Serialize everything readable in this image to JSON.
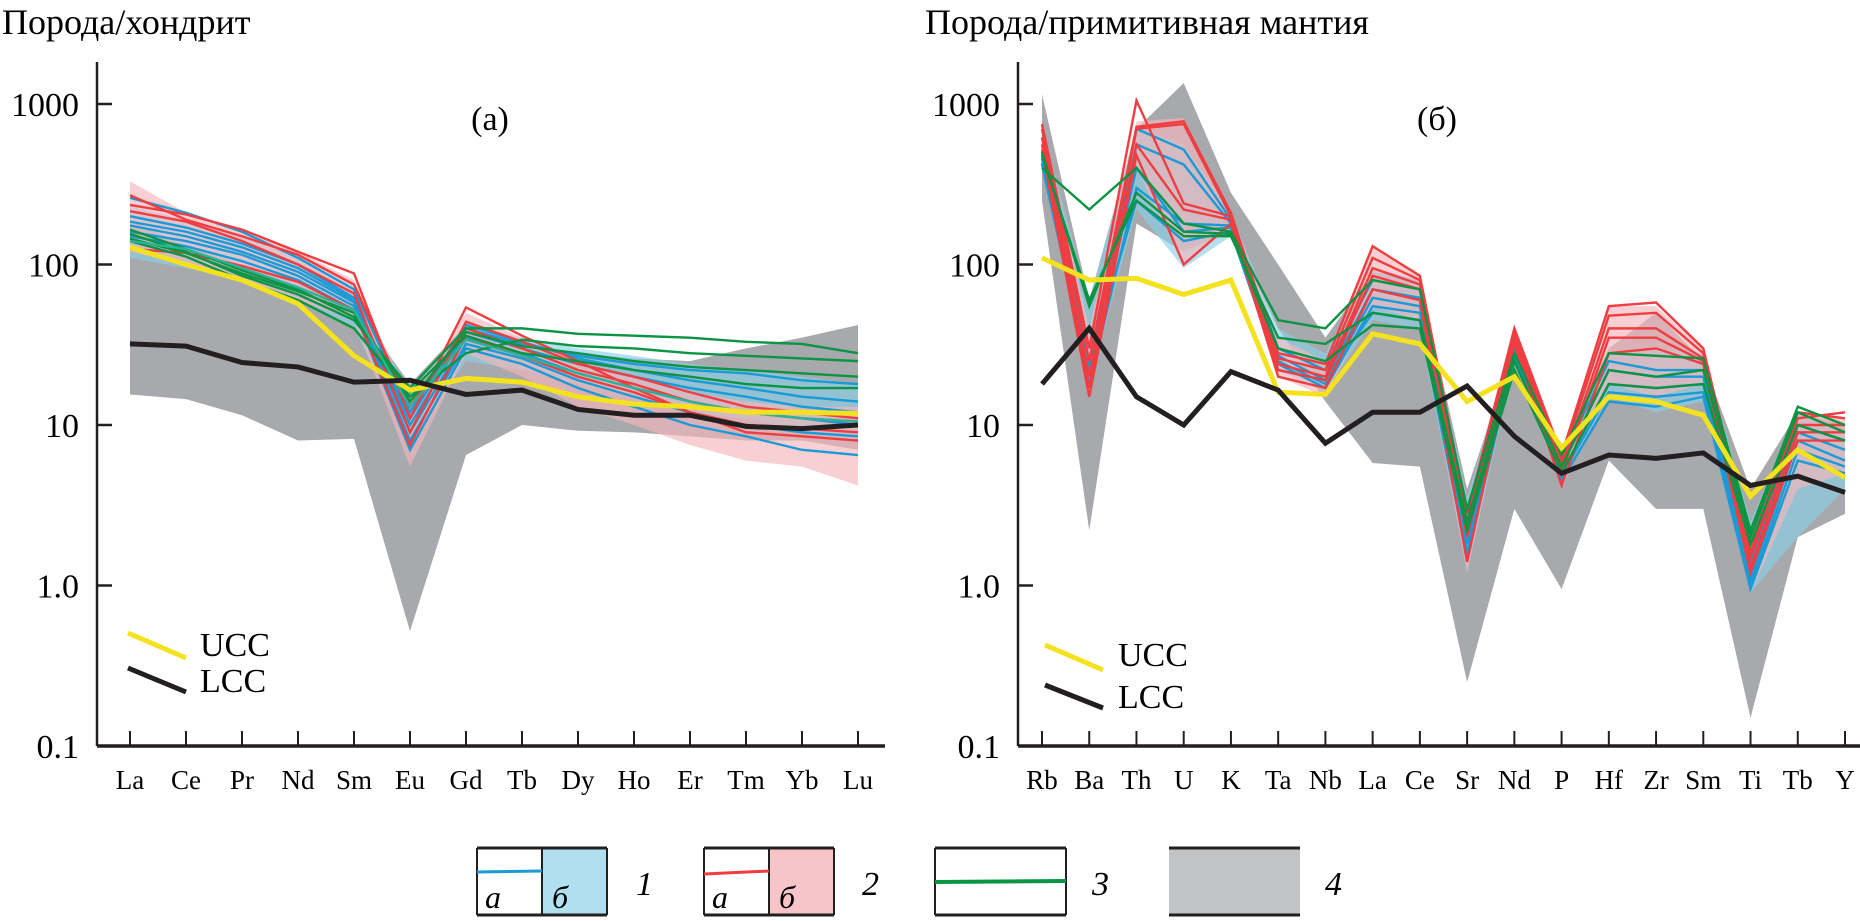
{
  "chart_data": [
    {
      "type": "line",
      "panel_label": "(a)",
      "ylabel": "Порода/хондрит",
      "yscale": "log",
      "ylim": [
        0.1,
        1500
      ],
      "yticks": [
        1000,
        100,
        10,
        1.0,
        0.1
      ],
      "ytick_labels": [
        "1000",
        "100",
        "10",
        "1.0",
        "0.1"
      ],
      "categories": [
        "La",
        "Ce",
        "Pr",
        "Nd",
        "Sm",
        "Eu",
        "Gd",
        "Tb",
        "Dy",
        "Ho",
        "Er",
        "Tm",
        "Yb",
        "Lu"
      ],
      "inset_legend": [
        {
          "label": "UCC",
          "color": "#f4e21e"
        },
        {
          "label": "LCC",
          "color": "#231f20"
        }
      ],
      "bands": [
        {
          "name": "field-4-gray",
          "color": "#a7a9ac",
          "upper": [
            190,
            130,
            100,
            75,
            55,
            18,
            42,
            30,
            28,
            26,
            25,
            30,
            35,
            42
          ],
          "lower": [
            15.5,
            14.5,
            11.5,
            8,
            8.2,
            0.52,
            6.5,
            10,
            9.2,
            9,
            8.5,
            8,
            8,
            7
          ]
        },
        {
          "name": "field-1b-blue",
          "color": "#8ccfe6",
          "upper": [
            230,
            190,
            150,
            110,
            70,
            16,
            42,
            35,
            30,
            27,
            24,
            22,
            20,
            18
          ],
          "lower": [
            110,
            95,
            80,
            60,
            40,
            8,
            25,
            22,
            18,
            15,
            12,
            11,
            9,
            8
          ]
        },
        {
          "name": "field-2b-pink",
          "color": "#f4b6bb",
          "upper": [
            330,
            210,
            160,
            120,
            80,
            14,
            50,
            35,
            25,
            20,
            16,
            14,
            13,
            13
          ],
          "lower": [
            120,
            100,
            80,
            60,
            45,
            5.5,
            28,
            20,
            13,
            10,
            7.5,
            6,
            5.5,
            4.2
          ]
        }
      ],
      "series": [
        {
          "name": "UCC",
          "color": "#f4e21e",
          "width": "thick",
          "values": [
            128,
            100,
            80,
            57,
            27,
            16.5,
            19.5,
            18.5,
            15,
            13.5,
            13,
            12,
            12,
            11.8
          ]
        },
        {
          "name": "LCC",
          "color": "#231f20",
          "width": "thick",
          "values": [
            32,
            31,
            24.5,
            23,
            18.5,
            19,
            15.5,
            16.5,
            12.5,
            11.5,
            11.5,
            9.8,
            9.5,
            10
          ]
        },
        {
          "name": "1a",
          "color": "#1a9ad6",
          "values": [
            260,
            210,
            160,
            110,
            70,
            12,
            42,
            33,
            26,
            22,
            19,
            17,
            15,
            14
          ]
        },
        {
          "name": "1a",
          "color": "#1a9ad6",
          "values": [
            200,
            170,
            135,
            100,
            62,
            10,
            38,
            30,
            24,
            20,
            17,
            15,
            13,
            12
          ]
        },
        {
          "name": "1a",
          "color": "#1a9ad6",
          "values": [
            175,
            150,
            120,
            90,
            58,
            9,
            35,
            28,
            21,
            17,
            14,
            12,
            11,
            10
          ]
        },
        {
          "name": "1a",
          "color": "#1a9ad6",
          "values": [
            160,
            140,
            115,
            85,
            55,
            8,
            32,
            26,
            19,
            15,
            12,
            10,
            9,
            8.5
          ]
        },
        {
          "name": "1a",
          "color": "#1a9ad6",
          "values": [
            150,
            130,
            105,
            80,
            52,
            7,
            30,
            24,
            17,
            13,
            10,
            8.5,
            7,
            6.5
          ]
        },
        {
          "name": "1a",
          "color": "#1a9ad6",
          "values": [
            185,
            160,
            128,
            95,
            60,
            11,
            40,
            32,
            27,
            24,
            22,
            21,
            19,
            18
          ]
        },
        {
          "name": "2a",
          "color": "#ef3e42",
          "values": [
            235,
            205,
            165,
            120,
            88,
            11,
            54,
            36,
            25,
            17,
            12,
            9,
            8.5,
            8
          ]
        },
        {
          "name": "2a",
          "color": "#ef3e42",
          "values": [
            215,
            185,
            140,
            100,
            66,
            9,
            44,
            33,
            24,
            20,
            16,
            13,
            12,
            11
          ]
        },
        {
          "name": "2a",
          "color": "#ef3e42",
          "values": [
            125,
            118,
            98,
            78,
            52,
            7.5,
            36,
            27,
            20,
            16,
            12,
            10,
            9.5,
            9
          ]
        },
        {
          "name": "2a",
          "color": "#ef3e42",
          "values": [
            270,
            190,
            150,
            115,
            75,
            13,
            40,
            30,
            22,
            18,
            14,
            12,
            11,
            10.5
          ]
        },
        {
          "name": "3",
          "color": "#0b9444",
          "values": [
            155,
            120,
            85,
            65,
            45,
            17,
            40,
            40,
            37,
            36,
            35,
            33,
            32,
            28
          ]
        },
        {
          "name": "3",
          "color": "#0b9444",
          "values": [
            140,
            112,
            80,
            60,
            40,
            15,
            28,
            34,
            31,
            30,
            28,
            27,
            26,
            25
          ]
        },
        {
          "name": "3",
          "color": "#0b9444",
          "values": [
            145,
            118,
            88,
            68,
            50,
            14,
            38,
            31,
            28,
            25,
            23,
            22,
            21,
            20
          ]
        },
        {
          "name": "3",
          "color": "#0b9444",
          "values": [
            165,
            125,
            92,
            70,
            47,
            16,
            36,
            28,
            25,
            22,
            20,
            18,
            17,
            17
          ]
        },
        {
          "name": "3",
          "color": "#2ab397",
          "values": [
            140,
            125,
            95,
            72,
            52,
            13,
            34,
            27,
            21,
            17,
            14,
            12,
            11,
            10.5
          ]
        }
      ]
    },
    {
      "type": "line",
      "panel_label": "(б)",
      "ylabel": "Порода/примитивная мантия",
      "yscale": "log",
      "ylim": [
        0.1,
        1500
      ],
      "yticks": [
        1000,
        100,
        10,
        1.0,
        0.1
      ],
      "ytick_labels": [
        "1000",
        "100",
        "10",
        "1.0",
        "0.1"
      ],
      "categories": [
        "Rb",
        "Ba",
        "Th",
        "U",
        "K",
        "Ta",
        "Nb",
        "La",
        "Ce",
        "Sr",
        "Nd",
        "P",
        "Hf",
        "Zr",
        "Sm",
        "Ti",
        "Tb",
        "Y"
      ],
      "inset_legend": [
        {
          "label": "UCC",
          "color": "#f4e21e"
        },
        {
          "label": "LCC",
          "color": "#231f20"
        }
      ],
      "bands": [
        {
          "name": "field-4-gray",
          "color": "#a7a9ac",
          "upper": [
            1150,
            60,
            700,
            1350,
            280,
            100,
            35,
            90,
            80,
            4,
            30,
            7,
            30,
            50,
            25,
            4,
            12,
            10
          ],
          "lower": [
            250,
            2.2,
            180,
            120,
            160,
            40,
            14,
            5.8,
            5.5,
            0.25,
            3,
            0.95,
            6,
            3,
            3,
            0.15,
            2,
            2.8
          ]
        },
        {
          "name": "field-1b-blue",
          "color": "#8ccfe6",
          "upper": [
            700,
            60,
            720,
            560,
            210,
            40,
            28,
            95,
            80,
            3.5,
            38,
            7,
            28,
            30,
            28,
            2.5,
            12,
            9
          ],
          "lower": [
            400,
            18,
            220,
            95,
            150,
            22,
            16,
            45,
            40,
            1.2,
            25,
            4.5,
            15,
            12,
            14,
            0.9,
            2,
            4
          ]
        },
        {
          "name": "field-2b-pink",
          "color": "#f4b6bb",
          "upper": [
            750,
            40,
            780,
            820,
            210,
            35,
            25,
            130,
            88,
            3,
            42,
            7,
            55,
            55,
            30,
            2,
            12,
            11
          ],
          "lower": [
            450,
            15,
            400,
            100,
            170,
            20,
            15,
            55,
            45,
            1.2,
            28,
            4,
            18,
            15,
            18,
            0.9,
            4,
            5
          ]
        }
      ],
      "series": [
        {
          "name": "UCC",
          "color": "#f4e21e",
          "width": "thick",
          "values": [
            110,
            80,
            82,
            65,
            80,
            16,
            15.5,
            37,
            32,
            14,
            20,
            7.2,
            15,
            14,
            11.5,
            3.6,
            7,
            4.7
          ]
        },
        {
          "name": "LCC",
          "color": "#231f20",
          "width": "thick",
          "values": [
            18,
            40,
            15,
            10,
            21.5,
            16.5,
            7.7,
            12,
            12,
            17.5,
            8.5,
            5,
            6.5,
            6.2,
            6.7,
            4.2,
            4.8,
            3.8
          ]
        },
        {
          "name": "1a",
          "color": "#1a9ad6",
          "values": [
            480,
            25,
            700,
            520,
            190,
            30,
            22,
            80,
            70,
            2.5,
            35,
            6,
            25,
            22,
            22,
            1.4,
            10,
            8
          ]
        },
        {
          "name": "1a",
          "color": "#1a9ad6",
          "values": [
            430,
            22,
            560,
            420,
            180,
            27,
            19,
            70,
            62,
            2,
            32,
            5.5,
            22,
            20,
            20,
            1.2,
            9,
            7
          ]
        },
        {
          "name": "1a",
          "color": "#1a9ad6",
          "values": [
            420,
            20,
            400,
            160,
            170,
            25,
            18,
            62,
            55,
            1.8,
            30,
            5,
            18,
            17,
            18,
            1.1,
            8,
            6
          ]
        },
        {
          "name": "1a",
          "color": "#1a9ad6",
          "values": [
            460,
            18,
            300,
            180,
            175,
            24,
            17,
            55,
            50,
            1.6,
            28,
            4.8,
            16,
            15,
            16,
            1.0,
            7,
            5.5
          ]
        },
        {
          "name": "1a",
          "color": "#1a9ad6",
          "values": [
            500,
            24,
            250,
            140,
            160,
            22,
            19,
            50,
            45,
            1.5,
            27,
            4.5,
            14,
            13,
            15,
            0.95,
            6,
            5
          ]
        },
        {
          "name": "2a",
          "color": "#ef3e42",
          "values": [
            750,
            30,
            1050,
            240,
            200,
            28,
            24,
            130,
            85,
            2.8,
            40,
            6.5,
            55,
            58,
            30,
            1.8,
            11,
            12
          ]
        },
        {
          "name": "2a",
          "color": "#ef3e42",
          "values": [
            700,
            25,
            720,
            780,
            210,
            26,
            22,
            110,
            80,
            2.5,
            38,
            6,
            48,
            50,
            28,
            1.6,
            12,
            11
          ]
        },
        {
          "name": "2a",
          "color": "#ef3e42",
          "values": [
            620,
            20,
            700,
            750,
            200,
            24,
            20,
            95,
            75,
            2.2,
            36,
            5.5,
            40,
            40,
            26,
            1.5,
            10,
            10
          ]
        },
        {
          "name": "2a",
          "color": "#ef3e42",
          "values": [
            560,
            17,
            560,
            220,
            190,
            22,
            19,
            85,
            70,
            2,
            34,
            5,
            35,
            35,
            25,
            1.3,
            9,
            9
          ]
        },
        {
          "name": "2a",
          "color": "#ef3e42",
          "values": [
            520,
            15,
            480,
            100,
            180,
            20,
            17,
            70,
            60,
            1.4,
            32,
            4.2,
            28,
            30,
            24,
            1.2,
            8,
            8
          ]
        },
        {
          "name": "3",
          "color": "#0b9444",
          "values": [
            400,
            220,
            400,
            180,
            160,
            45,
            40,
            80,
            70,
            3,
            28,
            6.5,
            28,
            27,
            26,
            2.2,
            13,
            10
          ]
        },
        {
          "name": "3",
          "color": "#0b9444",
          "values": [
            480,
            60,
            250,
            150,
            150,
            35,
            32,
            50,
            45,
            2.5,
            25,
            5.5,
            22,
            20,
            22,
            2,
            12,
            9
          ]
        },
        {
          "name": "3",
          "color": "#0b9444",
          "values": [
            500,
            55,
            280,
            160,
            155,
            30,
            25,
            42,
            40,
            2.2,
            22,
            5,
            18,
            17,
            18,
            1.8,
            10,
            8
          ]
        }
      ]
    }
  ],
  "legend": {
    "items": [
      {
        "number": "1",
        "sub_a": "а",
        "sub_b": "б",
        "line_color": "#1a9ad6",
        "fill_color": "#b0dff0"
      },
      {
        "number": "2",
        "sub_a": "а",
        "sub_b": "б",
        "line_color": "#ef3e42",
        "fill_color": "#f7c5c8"
      },
      {
        "number": "3",
        "line_color": "#0b9444"
      },
      {
        "number": "4",
        "fill_color": "#c2c3c5"
      }
    ]
  }
}
